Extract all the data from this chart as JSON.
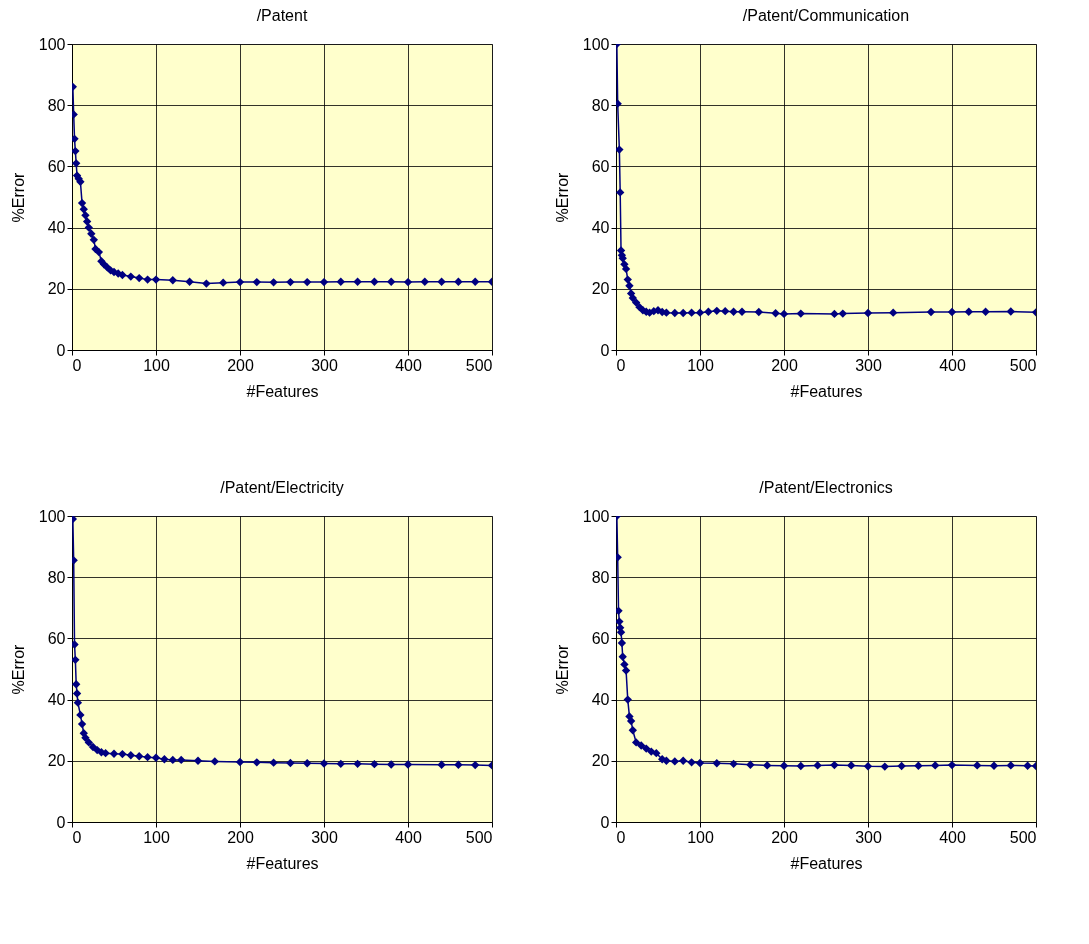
{
  "chart_data": [
    {
      "type": "line",
      "title": "/Patent",
      "xlabel": "#Features",
      "ylabel": "%Error",
      "x": [
        1,
        2,
        3,
        4,
        5,
        6,
        8,
        10,
        12,
        14,
        16,
        18,
        20,
        23,
        26,
        28,
        32,
        35,
        38,
        42,
        46,
        50,
        55,
        60,
        70,
        80,
        90,
        100,
        120,
        140,
        160,
        180,
        200,
        220,
        240,
        260,
        280,
        300,
        320,
        340,
        360,
        380,
        400,
        420,
        440,
        460,
        480,
        500
      ],
      "series": [
        {
          "color": "#000080",
          "values": [
            86,
            77,
            69,
            65,
            61,
            57,
            56,
            55,
            48,
            46,
            44,
            42,
            40,
            38,
            36,
            33,
            32,
            29,
            28,
            27,
            26,
            25.5,
            25,
            24.5,
            24,
            23.5,
            23,
            23,
            22.8,
            22.3,
            21.7,
            22,
            22.2,
            22.2,
            22.1,
            22.2,
            22.2,
            22.2,
            22.3,
            22.3,
            22.3,
            22.3,
            22.2,
            22.3,
            22.3,
            22.3,
            22.3,
            22.3
          ]
        }
      ],
      "xlim": [
        0,
        500
      ],
      "xticks": [
        0,
        100,
        200,
        300,
        400,
        500
      ],
      "ylim": [
        0,
        100
      ],
      "yticks": [
        0,
        20,
        40,
        60,
        80,
        100
      ],
      "grid": true,
      "marker": "diamond",
      "line_style": "solid"
    },
    {
      "type": "line",
      "title": "/Patent/Communication",
      "xlabel": "#Features",
      "ylabel": "%Error",
      "x": [
        1,
        2,
        4,
        5,
        6,
        7,
        8,
        10,
        12,
        14,
        16,
        18,
        20,
        24,
        28,
        32,
        36,
        40,
        45,
        50,
        55,
        60,
        70,
        80,
        90,
        100,
        110,
        120,
        130,
        140,
        150,
        170,
        190,
        200,
        220,
        260,
        270,
        300,
        330,
        375,
        400,
        420,
        440,
        470,
        500
      ],
      "series": [
        {
          "color": "#000080",
          "values": [
            100,
            80.5,
            65.5,
            51.5,
            32.5,
            31,
            30,
            28,
            26.5,
            23,
            21,
            18.5,
            17,
            15.5,
            14,
            13,
            12.5,
            12.2,
            12.7,
            13,
            12.4,
            12.2,
            12.1,
            12.1,
            12.2,
            12.2,
            12.5,
            12.8,
            12.7,
            12.5,
            12.5,
            12.4,
            12,
            11.8,
            11.9,
            11.8,
            11.9,
            12.1,
            12.2,
            12.4,
            12.4,
            12.5,
            12.5,
            12.6,
            12.3
          ]
        }
      ],
      "xlim": [
        0,
        500
      ],
      "xticks": [
        0,
        100,
        200,
        300,
        400,
        500
      ],
      "ylim": [
        0,
        100
      ],
      "yticks": [
        0,
        20,
        40,
        60,
        80,
        100
      ],
      "grid": true,
      "marker": "diamond",
      "line_style": "solid"
    },
    {
      "type": "line",
      "title": "/Patent/Electricity",
      "xlabel": "#Features",
      "ylabel": "%Error",
      "x": [
        1,
        2,
        3,
        4,
        5,
        6,
        7,
        10,
        12,
        14,
        16,
        20,
        25,
        30,
        35,
        40,
        50,
        60,
        70,
        80,
        90,
        100,
        110,
        120,
        130,
        150,
        170,
        200,
        220,
        240,
        260,
        280,
        300,
        320,
        340,
        360,
        380,
        400,
        440,
        460,
        480,
        500
      ],
      "series": [
        {
          "color": "#000080",
          "values": [
            99,
            85.5,
            58,
            53,
            45,
            42,
            39,
            35,
            32,
            29,
            27.5,
            26,
            24.5,
            23.5,
            22.8,
            22.5,
            22.3,
            22.2,
            21.8,
            21.5,
            21.2,
            21,
            20.5,
            20.3,
            20.3,
            20,
            19.8,
            19.6,
            19.5,
            19.4,
            19.3,
            19.2,
            19.1,
            19,
            19,
            18.9,
            18.8,
            18.8,
            18.7,
            18.7,
            18.6,
            18.5
          ]
        }
      ],
      "xlim": [
        0,
        500
      ],
      "xticks": [
        0,
        100,
        200,
        300,
        400,
        500
      ],
      "ylim": [
        0,
        100
      ],
      "yticks": [
        0,
        20,
        40,
        60,
        80,
        100
      ],
      "grid": true,
      "marker": "diamond",
      "line_style": "solid"
    },
    {
      "type": "line",
      "title": "/Patent/Electronics",
      "xlabel": "#Features",
      "ylabel": "%Error",
      "x": [
        1,
        2,
        3,
        4,
        5,
        6,
        7,
        8,
        10,
        12,
        14,
        16,
        18,
        20,
        24,
        30,
        36,
        42,
        48,
        55,
        60,
        70,
        80,
        90,
        100,
        120,
        140,
        160,
        180,
        200,
        220,
        240,
        260,
        280,
        300,
        320,
        340,
        360,
        380,
        400,
        430,
        450,
        470,
        490,
        500
      ],
      "series": [
        {
          "color": "#000080",
          "values": [
            100,
            86.5,
            69,
            65.5,
            63.5,
            62,
            58.5,
            54,
            51.5,
            49.5,
            40,
            34.5,
            33,
            30,
            26,
            25,
            24,
            23,
            22.5,
            20.5,
            20,
            19.8,
            20,
            19.5,
            19.3,
            19.2,
            19,
            18.7,
            18.5,
            18.4,
            18.3,
            18.5,
            18.6,
            18.5,
            18.2,
            18.1,
            18.3,
            18.4,
            18.5,
            18.6,
            18.5,
            18.4,
            18.5,
            18.4,
            18.3
          ]
        }
      ],
      "xlim": [
        0,
        500
      ],
      "xticks": [
        0,
        100,
        200,
        300,
        400,
        500
      ],
      "ylim": [
        0,
        100
      ],
      "yticks": [
        0,
        20,
        40,
        60,
        80,
        100
      ],
      "grid": true,
      "marker": "diamond",
      "line_style": "solid"
    }
  ]
}
